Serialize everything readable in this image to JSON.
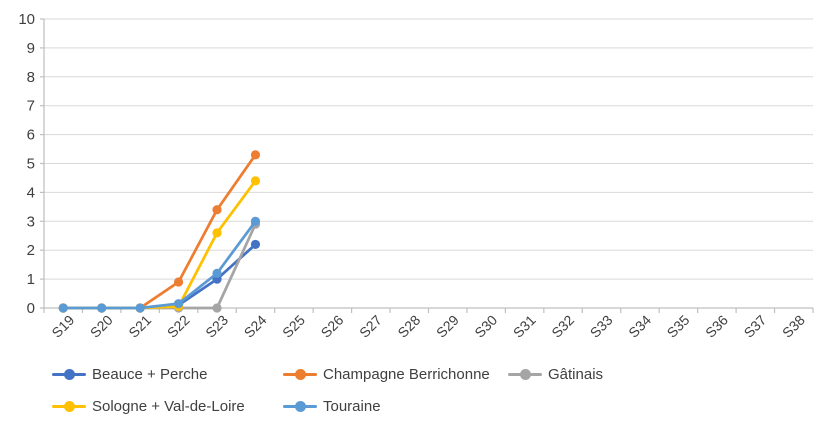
{
  "chart_data": {
    "type": "line",
    "title": "",
    "xlabel": "",
    "ylabel": "",
    "categories": [
      "S19",
      "S20",
      "S21",
      "S22",
      "S23",
      "S24",
      "S25",
      "S26",
      "S27",
      "S28",
      "S29",
      "S30",
      "S31",
      "S32",
      "S33",
      "S34",
      "S35",
      "S36",
      "S37",
      "S38"
    ],
    "series": [
      {
        "name": "Beauce + Perche",
        "color": "#4472C4",
        "values": [
          0,
          0,
          0,
          0.1,
          1.0,
          2.2
        ]
      },
      {
        "name": "Champagne Berrichonne",
        "color": "#ED7D31",
        "values": [
          0,
          0,
          0,
          0.9,
          3.4,
          5.3
        ]
      },
      {
        "name": "Gâtinais",
        "color": "#A5A5A5",
        "values": [
          0,
          0,
          0,
          0,
          0,
          2.9
        ]
      },
      {
        "name": "Sologne + Val-de-Loire",
        "color": "#FFC000",
        "values": [
          0,
          0,
          0,
          0.05,
          2.6,
          4.4
        ]
      },
      {
        "name": "Touraine",
        "color": "#5B9BD5",
        "values": [
          0,
          0,
          0,
          0.15,
          1.2,
          3.0
        ]
      }
    ],
    "ylim": [
      0,
      10
    ],
    "y_ticks": [
      "0",
      "1",
      "2",
      "3",
      "4",
      "5",
      "6",
      "7",
      "8",
      "9",
      "10"
    ],
    "grid": true,
    "legend_position": "bottom",
    "gridline_color": "#D9D9D9",
    "axis_color": "#BFBFBF",
    "tick_label_color": "#3f3f3f",
    "legend_text_color": "#404040"
  }
}
